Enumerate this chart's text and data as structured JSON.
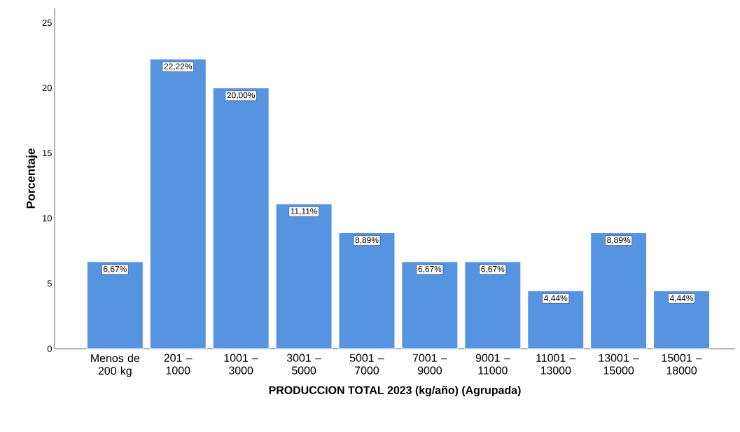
{
  "chart_data": {
    "type": "bar",
    "xlabel": "PRODUCCION TOTAL 2023 (kg/año) (Agrupada)",
    "ylabel": "Porcentaje",
    "categories": [
      "Menos de 200 kg",
      "201 – 1000",
      "1001 – 3000",
      "3001 – 5000",
      "5001 – 7000",
      "7001 – 9000",
      "9001 – 11000",
      "11001 – 13000",
      "13001 – 15000",
      "15001 – 18000"
    ],
    "values": [
      6.67,
      22.22,
      20.0,
      11.11,
      8.89,
      6.67,
      6.67,
      4.44,
      8.89,
      4.44
    ],
    "value_labels": [
      "6,67%",
      "22,22%",
      "20,00%",
      "11,11%",
      "8,89%",
      "6,67%",
      "6,67%",
      "4,44%",
      "8,89%",
      "4,44%"
    ],
    "color": "#5694e2",
    "ylim": [
      0,
      26.1
    ],
    "yticks": [
      0,
      5,
      10,
      15,
      20,
      25
    ],
    "grid": false
  }
}
